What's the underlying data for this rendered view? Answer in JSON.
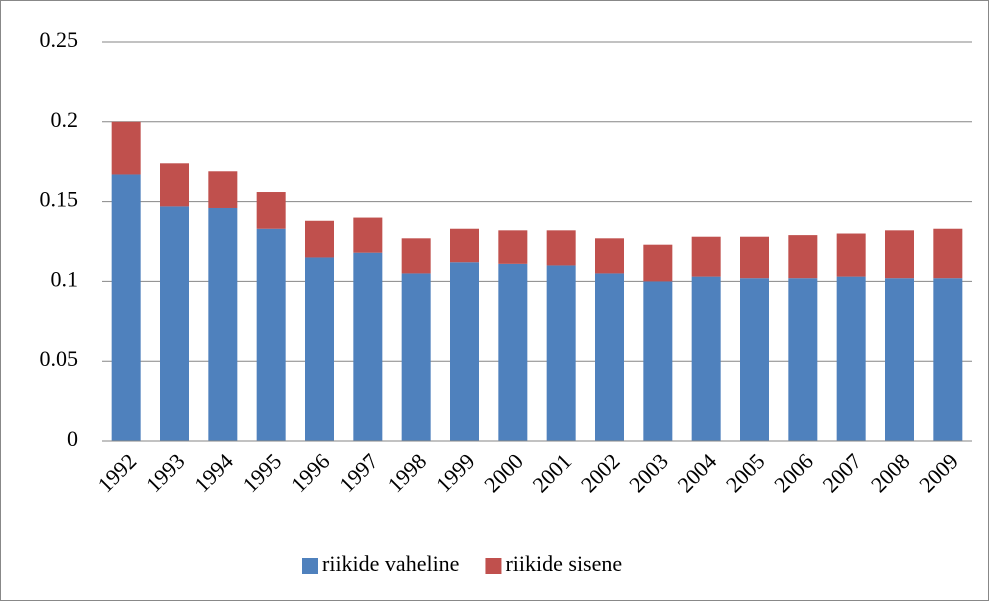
{
  "chart_data": {
    "type": "bar",
    "stacked": true,
    "categories": [
      "1992",
      "1993",
      "1994",
      "1995",
      "1996",
      "1997",
      "1998",
      "1999",
      "2000",
      "2001",
      "2002",
      "2003",
      "2004",
      "2005",
      "2006",
      "2007",
      "2008",
      "2009"
    ],
    "series": [
      {
        "name": "riikide vaheline",
        "color": "#4f81bd",
        "values": [
          0.167,
          0.147,
          0.146,
          0.133,
          0.115,
          0.118,
          0.105,
          0.112,
          0.111,
          0.11,
          0.105,
          0.1,
          0.103,
          0.102,
          0.102,
          0.103,
          0.102,
          0.102
        ]
      },
      {
        "name": "riikide sisene",
        "color": "#c0504d",
        "values": [
          0.033,
          0.027,
          0.023,
          0.023,
          0.023,
          0.022,
          0.022,
          0.021,
          0.021,
          0.022,
          0.022,
          0.023,
          0.025,
          0.026,
          0.027,
          0.027,
          0.03,
          0.031
        ]
      }
    ],
    "ylim": [
      0,
      0.25
    ],
    "yticks": [
      0,
      0.05,
      0.1,
      0.15,
      0.2,
      0.25
    ],
    "grid": true,
    "legend": "bottom"
  }
}
